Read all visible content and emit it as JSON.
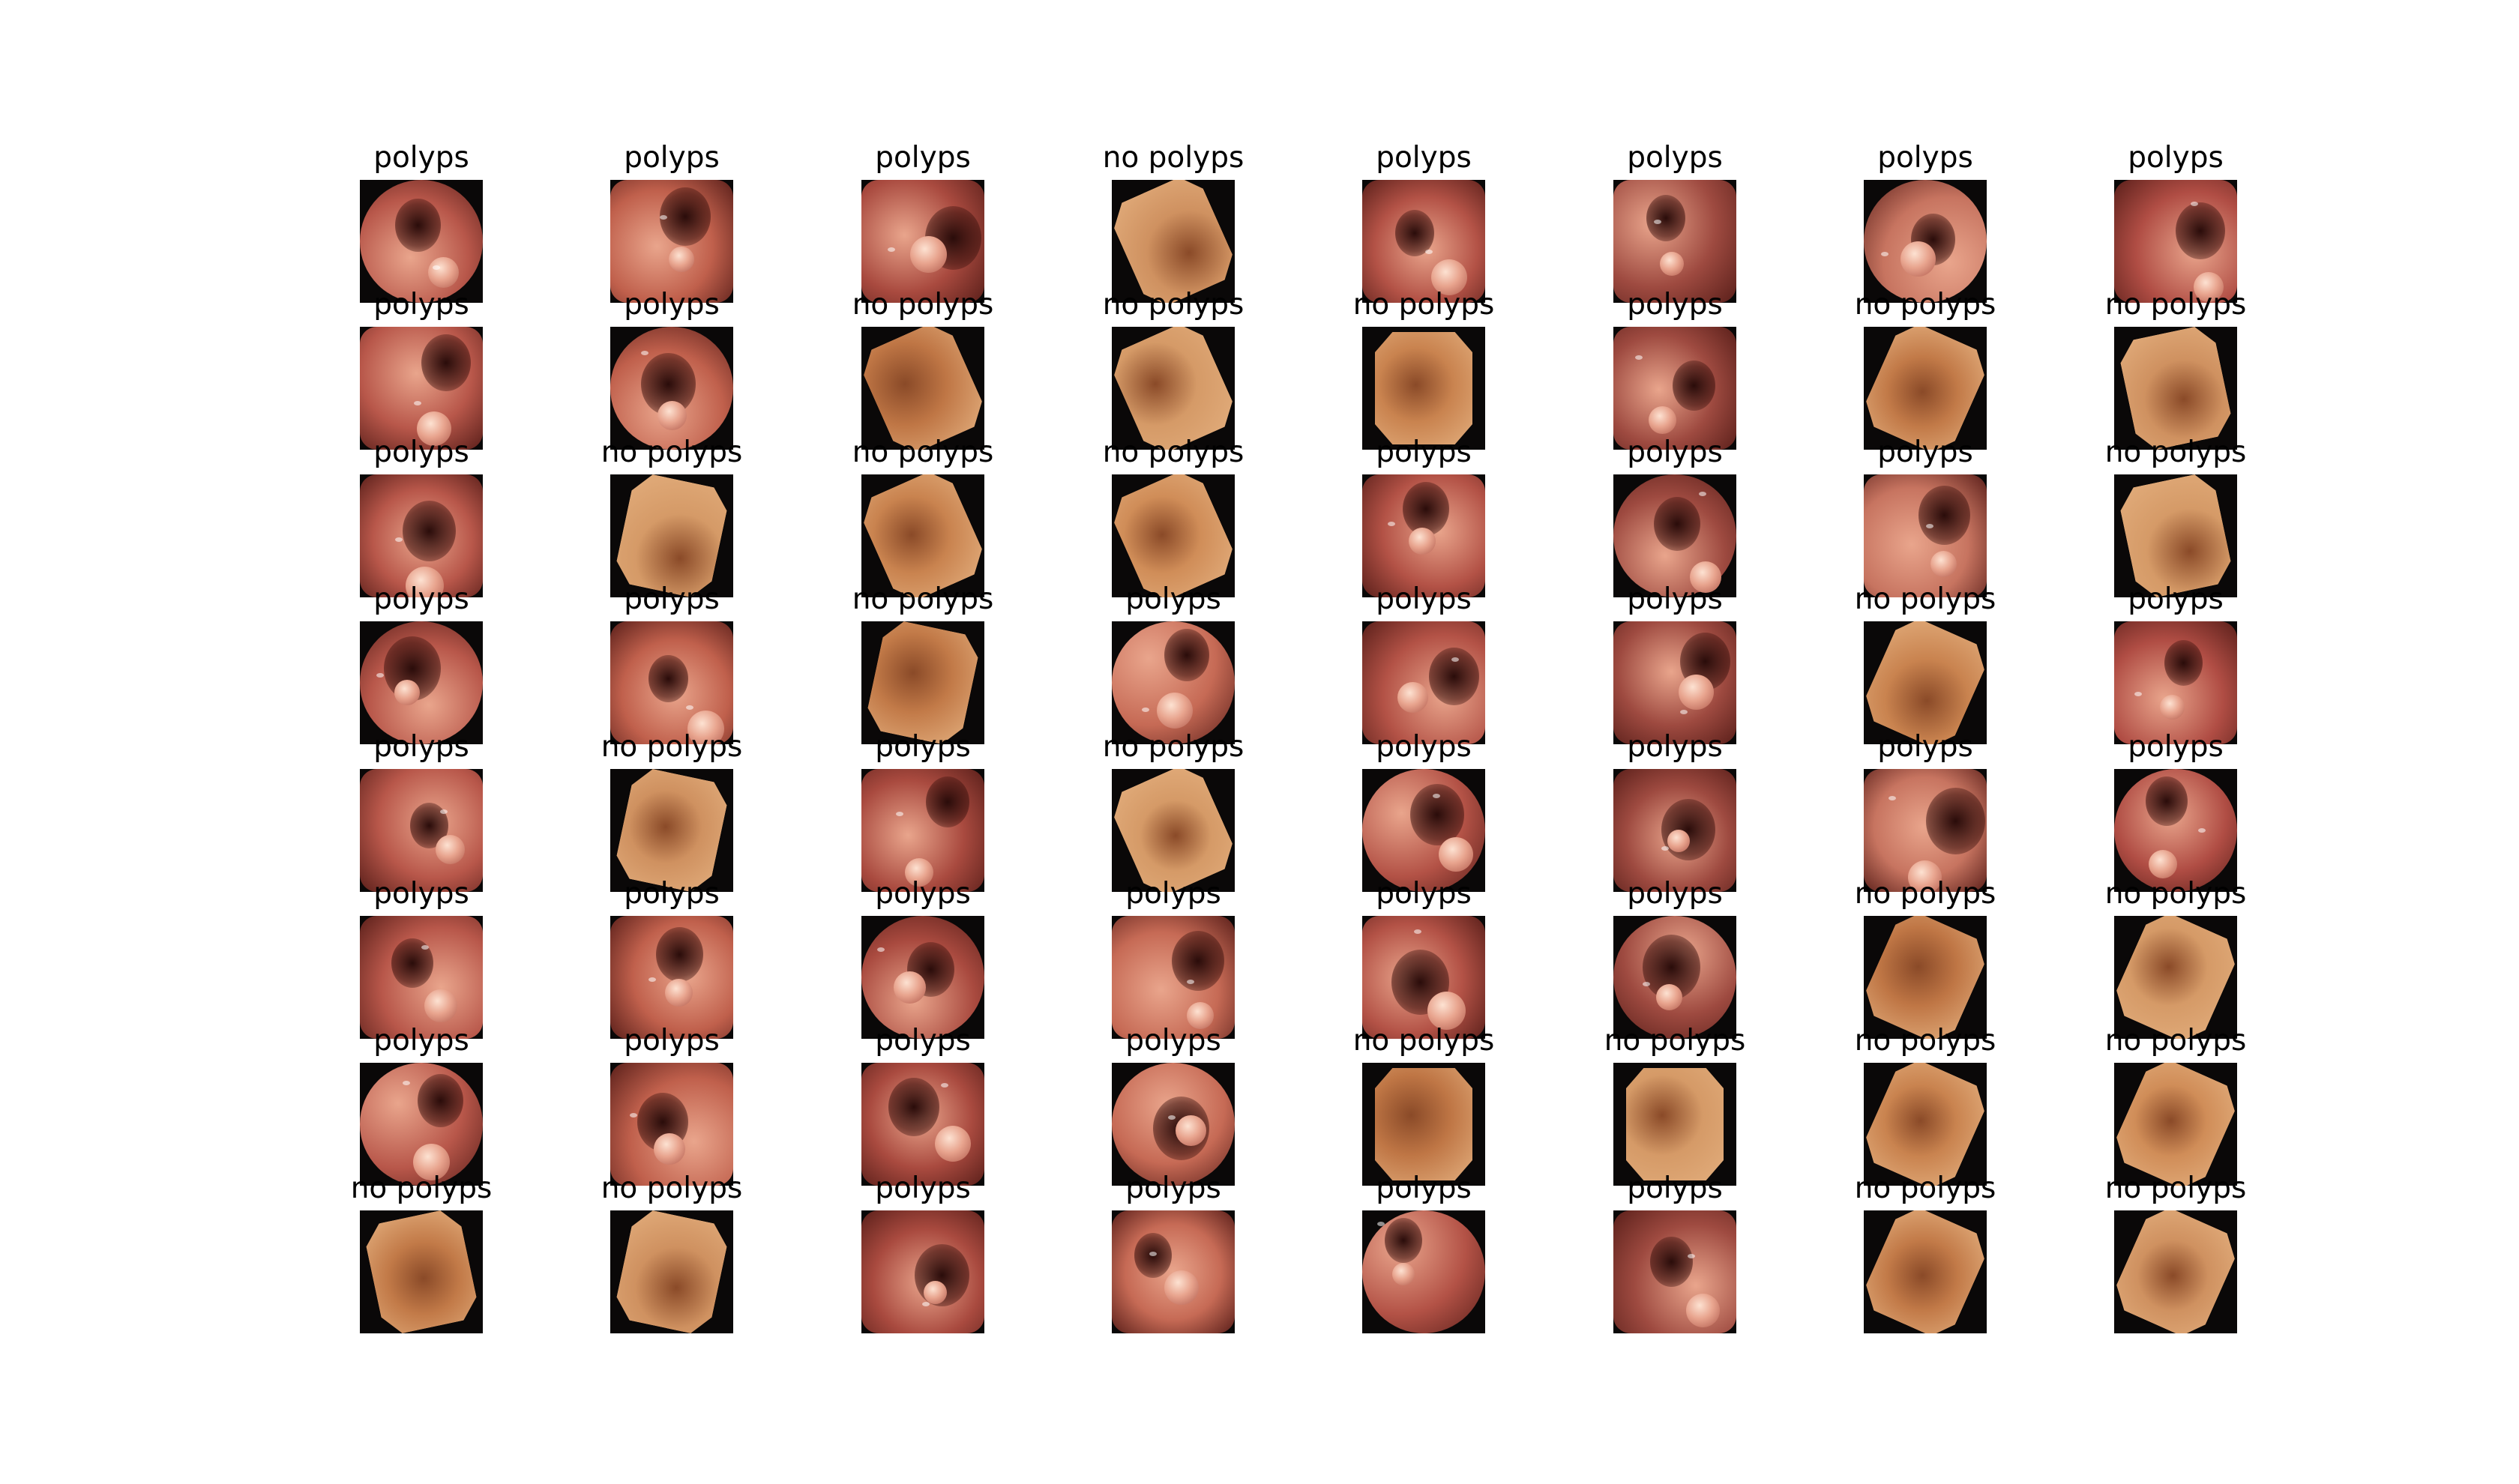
{
  "figure": {
    "grid": {
      "rows": 8,
      "cols": 8
    },
    "cells": [
      {
        "label": "polyps",
        "class": "polyps"
      },
      {
        "label": "polyps",
        "class": "polyps"
      },
      {
        "label": "polyps",
        "class": "polyps"
      },
      {
        "label": "no polyps",
        "class": "no-polyps"
      },
      {
        "label": "polyps",
        "class": "polyps"
      },
      {
        "label": "polyps",
        "class": "polyps"
      },
      {
        "label": "polyps",
        "class": "polyps"
      },
      {
        "label": "polyps",
        "class": "polyps"
      },
      {
        "label": "polyps",
        "class": "polyps"
      },
      {
        "label": "polyps",
        "class": "polyps"
      },
      {
        "label": "no polyps",
        "class": "no-polyps"
      },
      {
        "label": "no polyps",
        "class": "no-polyps"
      },
      {
        "label": "no polyps",
        "class": "no-polyps"
      },
      {
        "label": "polyps",
        "class": "polyps"
      },
      {
        "label": "no polyps",
        "class": "no-polyps"
      },
      {
        "label": "no polyps",
        "class": "no-polyps"
      },
      {
        "label": "polyps",
        "class": "polyps"
      },
      {
        "label": "no polyps",
        "class": "no-polyps"
      },
      {
        "label": "no polyps",
        "class": "no-polyps"
      },
      {
        "label": "no polyps",
        "class": "no-polyps"
      },
      {
        "label": "polyps",
        "class": "polyps"
      },
      {
        "label": "polyps",
        "class": "polyps"
      },
      {
        "label": "polyps",
        "class": "polyps"
      },
      {
        "label": "no polyps",
        "class": "no-polyps"
      },
      {
        "label": "polyps",
        "class": "polyps"
      },
      {
        "label": "polyps",
        "class": "polyps"
      },
      {
        "label": "no polyps",
        "class": "no-polyps"
      },
      {
        "label": "polyps",
        "class": "polyps"
      },
      {
        "label": "polyps",
        "class": "polyps"
      },
      {
        "label": "polyps",
        "class": "polyps"
      },
      {
        "label": "no polyps",
        "class": "no-polyps"
      },
      {
        "label": "polyps",
        "class": "polyps"
      },
      {
        "label": "polyps",
        "class": "polyps"
      },
      {
        "label": "no polyps",
        "class": "no-polyps"
      },
      {
        "label": "polyps",
        "class": "polyps"
      },
      {
        "label": "no polyps",
        "class": "no-polyps"
      },
      {
        "label": "polyps",
        "class": "polyps"
      },
      {
        "label": "polyps",
        "class": "polyps"
      },
      {
        "label": "polyps",
        "class": "polyps"
      },
      {
        "label": "polyps",
        "class": "polyps"
      },
      {
        "label": "polyps",
        "class": "polyps"
      },
      {
        "label": "polyps",
        "class": "polyps"
      },
      {
        "label": "polyps",
        "class": "polyps"
      },
      {
        "label": "polyps",
        "class": "polyps"
      },
      {
        "label": "polyps",
        "class": "polyps"
      },
      {
        "label": "polyps",
        "class": "polyps"
      },
      {
        "label": "no polyps",
        "class": "no-polyps"
      },
      {
        "label": "no polyps",
        "class": "no-polyps"
      },
      {
        "label": "polyps",
        "class": "polyps"
      },
      {
        "label": "polyps",
        "class": "polyps"
      },
      {
        "label": "polyps",
        "class": "polyps"
      },
      {
        "label": "polyps",
        "class": "polyps"
      },
      {
        "label": "no polyps",
        "class": "no-polyps"
      },
      {
        "label": "no polyps",
        "class": "no-polyps"
      },
      {
        "label": "no polyps",
        "class": "no-polyps"
      },
      {
        "label": "no polyps",
        "class": "no-polyps"
      },
      {
        "label": "no polyps",
        "class": "no-polyps"
      },
      {
        "label": "no polyps",
        "class": "no-polyps"
      },
      {
        "label": "polyps",
        "class": "polyps"
      },
      {
        "label": "polyps",
        "class": "polyps"
      },
      {
        "label": "polyps",
        "class": "polyps"
      },
      {
        "label": "polyps",
        "class": "polyps"
      },
      {
        "label": "no polyps",
        "class": "no-polyps"
      },
      {
        "label": "no polyps",
        "class": "no-polyps"
      }
    ]
  },
  "colors": {
    "background": "#ffffff",
    "title_text": "#000000",
    "mucosa_polyps": "#b8574a",
    "mucosa_no_polyps": "#c9834f",
    "frame_dark": "#0a0808"
  }
}
